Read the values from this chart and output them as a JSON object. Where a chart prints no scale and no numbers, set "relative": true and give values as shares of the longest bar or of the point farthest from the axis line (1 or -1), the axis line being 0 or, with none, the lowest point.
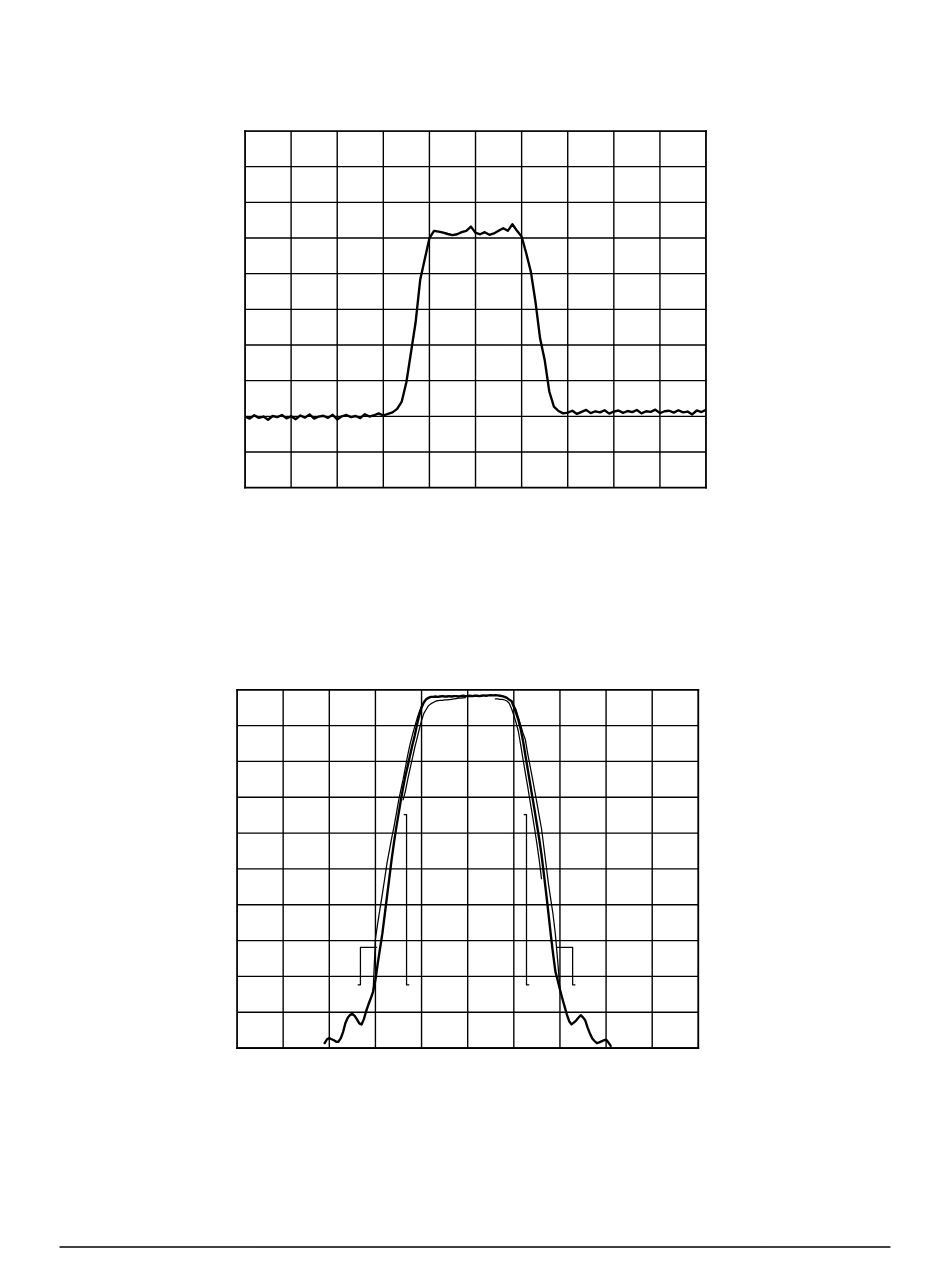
{
  "chart_data": [
    {
      "type": "line",
      "relative": true,
      "grid": true,
      "categories": [
        null,
        null,
        null,
        null,
        null,
        null,
        null,
        null,
        null,
        null,
        null,
        null,
        null,
        null,
        null,
        null,
        null,
        null,
        null,
        null,
        null,
        null,
        null,
        null,
        null,
        null,
        null,
        null,
        null,
        null,
        null,
        null,
        null,
        null,
        null,
        null,
        null,
        null,
        null,
        null,
        null,
        null,
        null,
        null,
        null,
        null,
        null,
        null,
        null,
        null,
        null,
        null,
        null,
        null,
        null,
        null,
        null,
        null,
        null,
        null,
        null,
        null,
        null,
        null,
        null,
        null,
        null,
        null,
        null,
        null,
        null,
        null,
        null,
        null,
        null,
        null,
        null,
        null,
        null,
        null,
        null,
        null,
        null,
        null,
        null,
        null,
        null,
        null,
        null,
        null,
        null,
        null,
        null,
        null,
        null,
        null,
        null,
        null,
        null,
        null,
        null
      ],
      "series": [
        {
          "color": "#000000",
          "values": [
            0.27,
            0.262,
            0.275,
            0.265,
            0.27,
            0.258,
            0.272,
            0.268,
            0.276,
            0.263,
            0.271,
            0.26,
            0.274,
            0.266,
            0.278,
            0.262,
            0.27,
            0.273,
            0.265,
            0.277,
            0.259,
            0.271,
            0.276,
            0.268,
            0.272,
            0.264,
            0.279,
            0.27,
            0.275,
            0.282,
            0.274,
            0.28,
            0.286,
            0.299,
            0.327,
            0.4,
            0.513,
            0.627,
            0.789,
            0.868,
            0.947,
            0.975,
            0.972,
            0.968,
            0.963,
            0.959,
            0.962,
            0.97,
            0.975,
            0.991,
            0.968,
            0.962,
            0.97,
            0.96,
            0.965,
            0.975,
            0.985,
            0.975,
            1.0,
            0.975,
            0.953,
            0.89,
            0.82,
            0.706,
            0.567,
            0.485,
            0.365,
            0.308,
            0.291,
            0.282,
            0.285,
            0.292,
            0.28,
            0.288,
            0.295,
            0.283,
            0.29,
            0.286,
            0.294,
            0.281,
            0.289,
            0.293,
            0.284,
            0.291,
            0.287,
            0.295,
            0.282,
            0.29,
            0.288,
            0.296,
            0.283,
            0.29,
            0.292,
            0.285,
            0.294,
            0.286,
            0.289,
            0.278,
            0.293,
            0.287,
            0.296
          ]
        }
      ]
    },
    {
      "type": "line",
      "relative": true,
      "grid": true,
      "categories": [
        null,
        null,
        null,
        null,
        null,
        null,
        null,
        null,
        null,
        null,
        null,
        null,
        null,
        null,
        null,
        null,
        null,
        null,
        null,
        null,
        null,
        null,
        null,
        null,
        null,
        null,
        null,
        null,
        null,
        null,
        null,
        null,
        null,
        null,
        null,
        null,
        null,
        null,
        null,
        null,
        null,
        null,
        null,
        null,
        null,
        null,
        null,
        null,
        null,
        null,
        null,
        null,
        null,
        null,
        null,
        null,
        null,
        null,
        null,
        null,
        null,
        null,
        null,
        null,
        null,
        null,
        null,
        null,
        null,
        null,
        null,
        null,
        null,
        null,
        null,
        null,
        null,
        null,
        null,
        null,
        null,
        null,
        null,
        null,
        null,
        null,
        null,
        null,
        null,
        null,
        null,
        null,
        null,
        null,
        null,
        null,
        null,
        null,
        null,
        null,
        null,
        null,
        null,
        null,
        null,
        null,
        null,
        null,
        null,
        null,
        null,
        null,
        null,
        null,
        null,
        null,
        null,
        null,
        null,
        null,
        null,
        null,
        null,
        null,
        null,
        null,
        null,
        null,
        null,
        null,
        null,
        null,
        null,
        null,
        null,
        null,
        null,
        null,
        null,
        null,
        null,
        null,
        null,
        null,
        null,
        null,
        null,
        null,
        null,
        null,
        null,
        null,
        null,
        null,
        null,
        null,
        null,
        null,
        null,
        null,
        null,
        null,
        null,
        null,
        null,
        null,
        null,
        null,
        null,
        null,
        null,
        null,
        null,
        null,
        null,
        null,
        null,
        null,
        null,
        null,
        null,
        null,
        null,
        null,
        null,
        null,
        null,
        null,
        null,
        null,
        null,
        null,
        null,
        null,
        null,
        null,
        null,
        null,
        null,
        null,
        null
      ],
      "series": [
        {
          "color": "#000000",
          "values": [
            null,
            null,
            null,
            null,
            null,
            null,
            null,
            null,
            null,
            null,
            null,
            null,
            null,
            null,
            null,
            null,
            null,
            null,
            null,
            null,
            null,
            null,
            null,
            null,
            null,
            null,
            null,
            null,
            null,
            null,
            null,
            null,
            null,
            null,
            null,
            null,
            null,
            null,
            0.014,
            0.025,
            0.028,
            0.025,
            0.022,
            0.018,
            0.018,
            0.028,
            0.046,
            0.071,
            0.086,
            0.094,
            0.097,
            0.091,
            0.081,
            0.07,
            0.067,
            0.082,
            0.105,
            0.124,
            0.141,
            0.16,
            0.193,
            0.239,
            0.282,
            0.324,
            0.376,
            0.428,
            0.48,
            0.533,
            0.58,
            0.623,
            0.662,
            0.701,
            0.738,
            0.771,
            0.799,
            0.829,
            0.858,
            0.884,
            0.915,
            0.942,
            0.965,
            0.979,
            0.988,
            0.992,
            0.995,
            0.995,
            0.996,
            0.995,
            0.996,
            0.997,
            0.996,
            0.996,
            0.997,
            0.996,
            0.997,
            0.997,
            0.996,
            0.997,
            0.998,
            0.997,
            0.997,
            0.998,
            0.997,
            0.998,
            0.998,
            0.997,
            0.998,
            0.999,
            0.998,
            0.999,
            1.0,
            0.999,
            1.0,
            0.999,
            0.998,
            0.997,
            0.995,
            0.992,
            0.987,
            0.983,
            0.967,
            0.949,
            0.929,
            0.903,
            0.87,
            0.83,
            0.791,
            0.752,
            0.713,
            0.674,
            0.634,
            0.593,
            0.548,
            0.495,
            0.44,
            0.382,
            0.323,
            0.268,
            0.218,
            0.192,
            0.166,
            0.141,
            0.118,
            0.095,
            0.076,
            0.067,
            0.072,
            0.078,
            0.086,
            0.093,
            0.087,
            0.078,
            0.058,
            0.041,
            0.027,
            0.02,
            0.014,
            0.016,
            0.019,
            0.022,
            0.024,
            0.016,
            0.006,
            null,
            null,
            null,
            null,
            null,
            null,
            null,
            null,
            null,
            null,
            null,
            null,
            null,
            null,
            null,
            null,
            null,
            null,
            null,
            null,
            null,
            null,
            null,
            null,
            null,
            null,
            null,
            null,
            null,
            null,
            null,
            null,
            null,
            null,
            null,
            null,
            null,
            null
          ]
        },
        {
          "color": "#000000",
          "values": [
            null,
            null,
            null,
            null,
            null,
            null,
            null,
            null,
            null,
            null,
            null,
            null,
            null,
            null,
            null,
            null,
            null,
            null,
            null,
            null,
            null,
            null,
            null,
            null,
            null,
            null,
            null,
            null,
            null,
            null,
            null,
            null,
            null,
            null,
            null,
            null,
            null,
            null,
            null,
            null,
            null,
            null,
            null,
            null,
            null,
            null,
            null,
            null,
            null,
            null,
            null,
            null,
            null,
            null,
            null,
            null,
            null,
            null,
            null,
            0.16,
            0.309,
            0.354,
            0.395,
            0.436,
            0.479,
            0.523,
            0.558,
            0.593,
            0.625,
            0.661,
            0.699,
            0.731,
            0.761,
            0.795,
            0.83,
            0.86,
            0.886,
            0.91,
            0.932,
            0.952,
            0.968,
            0.982,
            null,
            null,
            null,
            null,
            null,
            null,
            null,
            null,
            null,
            null,
            null,
            null,
            null,
            null,
            null,
            null,
            null,
            null,
            null,
            null,
            null,
            null,
            null,
            null,
            null,
            null,
            null,
            null,
            null,
            null,
            null,
            null,
            null,
            null,
            null,
            null,
            null,
            null,
            0.97,
            0.958,
            0.936,
            0.914,
            0.892,
            0.874,
            0.835,
            0.801,
            0.767,
            0.731,
            0.695,
            0.658,
            0.622,
            0.571,
            0.519,
            0.466,
            0.422,
            0.379,
            0.323,
            0.249,
            0.166,
            null,
            null,
            null,
            null,
            null,
            null,
            null,
            null,
            null,
            null,
            null,
            null,
            null,
            null,
            null,
            null,
            null,
            null,
            null,
            null,
            null,
            null,
            null,
            null,
            null,
            null,
            null,
            null,
            null,
            null,
            null,
            null,
            null,
            null,
            null,
            null,
            null,
            null,
            null,
            null,
            null,
            null,
            null,
            null,
            null,
            null,
            null,
            null,
            null,
            null,
            null,
            null,
            null,
            null,
            null,
            null,
            null,
            null,
            null,
            null
          ]
        },
        {
          "color": "#000000",
          "values": [
            null,
            null,
            null,
            null,
            null,
            null,
            null,
            null,
            null,
            null,
            null,
            null,
            null,
            null,
            null,
            null,
            null,
            null,
            null,
            null,
            null,
            null,
            null,
            null,
            null,
            null,
            null,
            null,
            null,
            null,
            null,
            null,
            null,
            null,
            null,
            null,
            null,
            null,
            null,
            null,
            null,
            null,
            null,
            null,
            null,
            null,
            null,
            null,
            null,
            null,
            null,
            null,
            null,
            null,
            null,
            null,
            null,
            null,
            null,
            null,
            null,
            null,
            null,
            null,
            null,
            null,
            null,
            null,
            null,
            null,
            null,
            null,
            0.703,
            0.728,
            0.761,
            0.791,
            0.82,
            0.85,
            0.876,
            0.903,
            0.928,
            0.948,
            0.959,
            0.97,
            0.975,
            0.979,
            0.982,
            0.984,
            0.985,
            0.985,
            0.986,
            0.986,
            0.987,
            0.988,
            0.989,
            0.99,
            0.991,
            0.991,
            0.992,
            0.993,
            null,
            null,
            null,
            null,
            null,
            null,
            null,
            null,
            null,
            null,
            null,
            null,
            0.989,
            0.989,
            0.988,
            0.988,
            0.986,
            0.983,
            0.977,
            0.962,
            0.943,
            0.921,
            0.896,
            0.858,
            0.818,
            0.779,
            0.741,
            0.701,
            0.662,
            0.622,
            0.579,
            0.533,
            0.48,
            null,
            null,
            null,
            null,
            null,
            null,
            null,
            null,
            null,
            null,
            null,
            null,
            null,
            null,
            null,
            null,
            null,
            null,
            null,
            null,
            null,
            null,
            null,
            null,
            null,
            null,
            null,
            null,
            null,
            null,
            null,
            null,
            null,
            null,
            null,
            null,
            null,
            null,
            null,
            null,
            null,
            null,
            null,
            null,
            null,
            null,
            null,
            null,
            null,
            null,
            null,
            null,
            null,
            null,
            null,
            null,
            null,
            null,
            null,
            null,
            null,
            null,
            null,
            null,
            null,
            null,
            null,
            null
          ]
        },
        {
          "type": "step",
          "color": "#000000",
          "values": [
            null,
            null,
            null,
            null,
            null,
            null,
            null,
            null,
            null,
            null,
            null,
            null,
            null,
            null,
            null,
            null,
            null,
            null,
            null,
            null,
            null,
            null,
            null,
            null,
            null,
            null,
            null,
            null,
            null,
            null,
            null,
            null,
            null,
            null,
            null,
            null,
            null,
            null,
            null,
            null,
            null,
            null,
            null,
            null,
            null,
            null,
            null,
            null,
            null,
            null,
            null,
            null,
            null,
            0.179,
            0.285,
            0.285,
            0.285,
            0.285,
            0.285,
            0.285,
            0.285,
            null,
            null,
            null,
            null,
            null,
            null,
            null,
            null,
            null,
            null,
            null,
            null,
            0.661,
            0.179,
            null,
            null,
            null,
            null,
            null,
            null,
            null,
            null,
            null,
            null,
            null,
            null,
            null,
            null,
            null,
            null,
            null,
            null,
            null,
            null,
            null,
            null,
            null,
            null,
            null,
            null,
            null,
            null,
            null,
            null,
            null,
            null,
            null,
            null,
            null,
            null,
            null,
            null,
            null,
            null,
            null,
            null,
            null,
            null,
            null,
            null,
            null,
            null,
            null,
            null,
            0.661,
            0.179,
            null,
            null,
            null,
            null,
            null,
            null,
            null,
            null,
            null,
            null,
            null,
            null,
            0.285,
            0.285,
            0.285,
            0.285,
            0.285,
            0.285,
            0.285,
            0.179,
            null,
            null,
            null,
            null,
            null,
            null,
            null,
            null,
            null,
            null,
            null,
            null,
            null,
            null,
            null,
            null,
            null,
            null,
            null,
            null,
            null,
            null,
            null,
            null,
            null,
            null,
            null,
            null,
            null,
            null,
            null,
            null,
            null,
            null,
            null,
            null,
            null,
            null,
            null,
            null,
            null,
            null,
            null,
            null,
            null,
            null,
            null,
            null,
            null,
            null,
            null,
            null,
            null,
            null
          ]
        }
      ]
    }
  ]
}
